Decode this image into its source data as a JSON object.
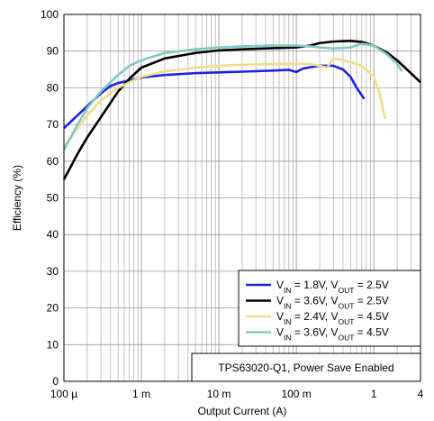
{
  "chart_data": {
    "type": "line",
    "xlabel": "Output Current (A)",
    "ylabel": "Efficiency (%)",
    "xscale": "log",
    "xlim": [
      0.0001,
      4
    ],
    "ylim": [
      0,
      100
    ],
    "grid": true,
    "x_ticks": [
      {
        "value": 0.0001,
        "label": "100 µ"
      },
      {
        "value": 0.001,
        "label": "1 m"
      },
      {
        "value": 0.01,
        "label": "10 m"
      },
      {
        "value": 0.1,
        "label": "100 m"
      },
      {
        "value": 1,
        "label": "1"
      },
      {
        "value": 4,
        "label": "4"
      }
    ],
    "y_ticks": [
      0,
      10,
      20,
      30,
      40,
      50,
      60,
      70,
      80,
      90,
      100
    ],
    "legend_position": "bottom-right",
    "annotation": "TPS63020-Q1, Power Save Enabled",
    "series": [
      {
        "name_parts": [
          "V",
          "IN",
          " = 1.8V, V",
          "OUT",
          " = 2.5V"
        ],
        "color": "#1f1fe6",
        "points": [
          [
            0.0001,
            69
          ],
          [
            0.00015,
            72.5
          ],
          [
            0.0002,
            75
          ],
          [
            0.0003,
            78.5
          ],
          [
            0.0004,
            80.5
          ],
          [
            0.0005,
            81.3
          ],
          [
            0.0007,
            82
          ],
          [
            0.001,
            82.8
          ],
          [
            0.002,
            83.5
          ],
          [
            0.005,
            84
          ],
          [
            0.01,
            84.2
          ],
          [
            0.02,
            84.4
          ],
          [
            0.05,
            84.7
          ],
          [
            0.08,
            84.9
          ],
          [
            0.1,
            84.3
          ],
          [
            0.12,
            85.2
          ],
          [
            0.15,
            85.6
          ],
          [
            0.2,
            86
          ],
          [
            0.3,
            86
          ],
          [
            0.4,
            85
          ],
          [
            0.5,
            83
          ],
          [
            0.6,
            80
          ],
          [
            0.75,
            77
          ]
        ]
      },
      {
        "name_parts": [
          "V",
          "IN",
          " = 3.6V, V",
          "OUT",
          " = 2.5V"
        ],
        "color": "#000000",
        "points": [
          [
            0.0001,
            55
          ],
          [
            0.00015,
            62
          ],
          [
            0.0002,
            66.5
          ],
          [
            0.0003,
            72
          ],
          [
            0.0005,
            79
          ],
          [
            0.0007,
            82.5
          ],
          [
            0.001,
            85.5
          ],
          [
            0.002,
            88
          ],
          [
            0.005,
            89.5
          ],
          [
            0.01,
            90.2
          ],
          [
            0.02,
            90.5
          ],
          [
            0.05,
            90.8
          ],
          [
            0.1,
            91
          ],
          [
            0.15,
            91.5
          ],
          [
            0.2,
            92.2
          ],
          [
            0.3,
            92.6
          ],
          [
            0.5,
            92.8
          ],
          [
            0.7,
            92.5
          ],
          [
            1,
            91.5
          ],
          [
            1.5,
            89.5
          ],
          [
            2,
            87.5
          ],
          [
            3,
            84
          ],
          [
            4,
            81.5
          ]
        ]
      },
      {
        "name_parts": [
          "V",
          "IN",
          " = 2.4V, V",
          "OUT",
          " = 4.5V"
        ],
        "color": "#f2dc8a",
        "points": [
          [
            0.0001,
            64
          ],
          [
            0.00015,
            69
          ],
          [
            0.0002,
            72.5
          ],
          [
            0.0003,
            76.5
          ],
          [
            0.0005,
            80
          ],
          [
            0.0007,
            81.5
          ],
          [
            0.001,
            83
          ],
          [
            0.002,
            84.5
          ],
          [
            0.005,
            85.5
          ],
          [
            0.01,
            86
          ],
          [
            0.02,
            86.3
          ],
          [
            0.05,
            86.5
          ],
          [
            0.1,
            86.5
          ],
          [
            0.15,
            86.5
          ],
          [
            0.2,
            86
          ],
          [
            0.25,
            85.5
          ],
          [
            0.3,
            88
          ],
          [
            0.35,
            87.8
          ],
          [
            0.5,
            87
          ],
          [
            0.7,
            86
          ],
          [
            1,
            83
          ],
          [
            1.2,
            78
          ],
          [
            1.4,
            71.5
          ]
        ]
      },
      {
        "name_parts": [
          "V",
          "IN",
          " = 3.6V, V",
          "OUT",
          " = 4.5V"
        ],
        "color": "#7fcac3",
        "points": [
          [
            0.0001,
            63
          ],
          [
            0.00015,
            70
          ],
          [
            0.0002,
            74.5
          ],
          [
            0.0003,
            79
          ],
          [
            0.0005,
            83.5
          ],
          [
            0.0007,
            86
          ],
          [
            0.001,
            87.5
          ],
          [
            0.002,
            89.5
          ],
          [
            0.005,
            90.5
          ],
          [
            0.01,
            91
          ],
          [
            0.02,
            91.3
          ],
          [
            0.05,
            91.5
          ],
          [
            0.1,
            91.5
          ],
          [
            0.15,
            91.3
          ],
          [
            0.2,
            91
          ],
          [
            0.3,
            90.7
          ],
          [
            0.5,
            91
          ],
          [
            0.7,
            92
          ],
          [
            1,
            91.5
          ],
          [
            1.5,
            89
          ],
          [
            2,
            86.5
          ],
          [
            2.3,
            84.5
          ]
        ]
      }
    ]
  }
}
